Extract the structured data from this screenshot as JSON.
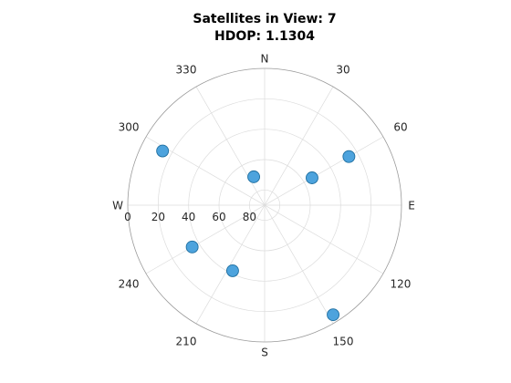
{
  "chart_data": {
    "type": "scatter",
    "projection": "polar",
    "title_line1": "Satellites in View: 7",
    "title_line2": "HDOP: 1.1304",
    "theta_zero": "top",
    "theta_direction": "clockwise",
    "compass_labels": [
      {
        "angle": 0,
        "text": "N"
      },
      {
        "angle": 90,
        "text": "E"
      },
      {
        "angle": 180,
        "text": "S"
      },
      {
        "angle": 270,
        "text": "W"
      }
    ],
    "angle_tick_labels": [
      {
        "angle": 30,
        "text": "30"
      },
      {
        "angle": 60,
        "text": "60"
      },
      {
        "angle": 120,
        "text": "120"
      },
      {
        "angle": 150,
        "text": "150"
      },
      {
        "angle": 210,
        "text": "210"
      },
      {
        "angle": 240,
        "text": "240"
      },
      {
        "angle": 300,
        "text": "300"
      },
      {
        "angle": 330,
        "text": "330"
      }
    ],
    "radial_axis": {
      "reversed": true,
      "range": [
        0,
        90
      ],
      "ticks": [
        0,
        20,
        40,
        60,
        80
      ],
      "tick_labels": [
        "0",
        "20",
        "40",
        "60",
        "80"
      ]
    },
    "grid": true,
    "points": [
      {
        "azimuth": 60,
        "elevation": 26
      },
      {
        "azimuth": 60,
        "elevation": 54
      },
      {
        "azimuth": 148,
        "elevation": 5
      },
      {
        "azimuth": 206,
        "elevation": 42
      },
      {
        "azimuth": 240,
        "elevation": 35
      },
      {
        "azimuth": 298,
        "elevation": 14
      },
      {
        "azimuth": 339,
        "elevation": 70
      }
    ],
    "marker_color": "#4da3dd",
    "marker_edge_color": "#1f6fa0",
    "grid_color": "#dcdcdc",
    "outer_circle_color": "#9a9a9a"
  }
}
